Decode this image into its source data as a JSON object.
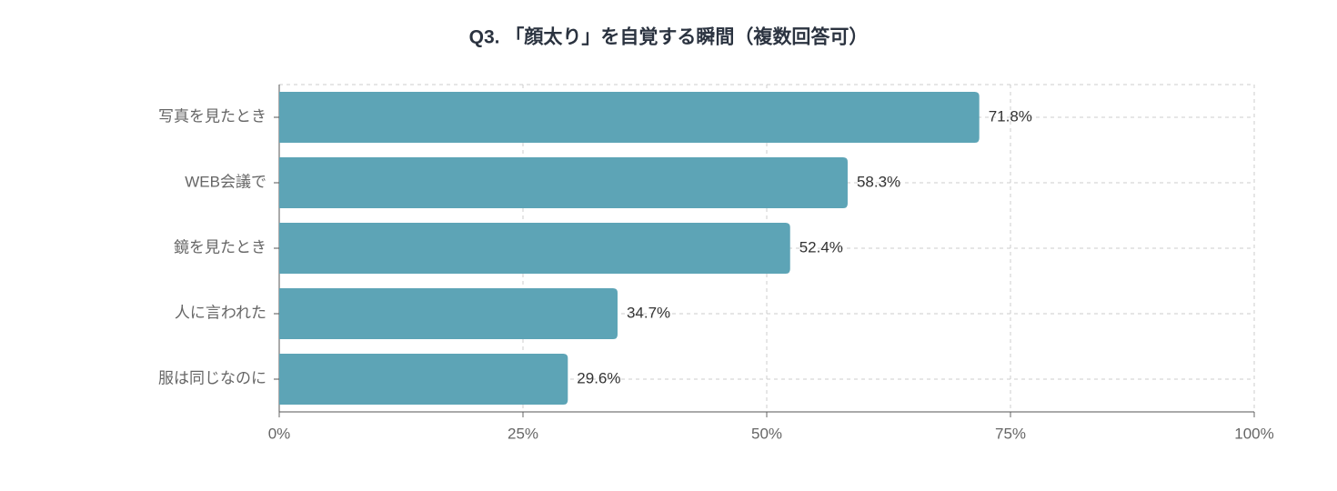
{
  "chart_data": {
    "type": "bar",
    "orientation": "horizontal",
    "title": "Q3. 「顔太り」を自覚する瞬間（複数回答可）",
    "categories": [
      "写真を見たとき",
      "WEB会議で",
      "鏡を見たとき",
      "人に言われた",
      "服は同じなのに"
    ],
    "values": [
      71.8,
      58.3,
      52.4,
      34.7,
      29.6
    ],
    "value_labels": [
      "71.8%",
      "58.3%",
      "52.4%",
      "34.7%",
      "29.6%"
    ],
    "color": "#5da4b6",
    "xlim": [
      0,
      100
    ],
    "xticks": [
      {
        "value": 0,
        "label": "0%"
      },
      {
        "value": 25,
        "label": "25%"
      },
      {
        "value": 50,
        "label": "50%"
      },
      {
        "value": 75,
        "label": "75%"
      },
      {
        "value": 100,
        "label": "100%"
      }
    ],
    "grid": true
  }
}
